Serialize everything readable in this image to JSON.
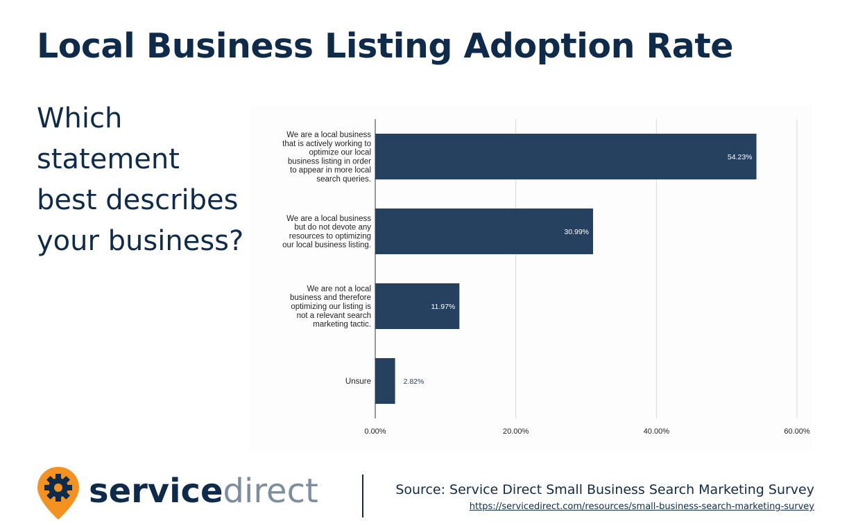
{
  "page": {
    "title": "Local Business Listing Adoption Rate",
    "question": "Which statement best describes your business?"
  },
  "colors": {
    "bar": "#26415f",
    "title": "#0f2b4b",
    "accent_orange": "#f39220",
    "logo_direct": "#7b8da1",
    "grid": "#d9d9d9"
  },
  "chart_data": {
    "type": "bar",
    "orientation": "horizontal",
    "categories": [
      "We are a local business that is actively working to optimize our local business listing in order to appear in more local search queries.",
      "We are a local business but do not devote any resources to optimizing our local business listing.",
      "We are not a local business and therefore optimizing our listing is not a relevant search marketing tactic.",
      "Unsure"
    ],
    "category_lines": [
      [
        "We are a local business",
        "that is actively working to",
        "optimize our local",
        "business listing in order",
        "to appear in more local",
        "search queries."
      ],
      [
        "We are a local business",
        "but do not devote any",
        "resources to optimizing",
        "our local business listing."
      ],
      [
        "We are not a local",
        "business and therefore",
        "optimizing our listing is",
        "not a relevant search",
        "marketing tactic."
      ],
      [
        "Unsure"
      ]
    ],
    "values": [
      54.23,
      30.99,
      11.97,
      2.82
    ],
    "data_labels": [
      "54.23%",
      "30.99%",
      "11.97%",
      "2.82%"
    ],
    "xlim": [
      0,
      60
    ],
    "x_ticks": [
      0,
      20,
      40,
      60
    ],
    "x_tick_labels": [
      "0.00%",
      "20.00%",
      "40.00%",
      "60.00%"
    ],
    "grid": true
  },
  "logo": {
    "name_bold": "service",
    "name_light": "direct",
    "icon": "gear-pin-icon"
  },
  "source": {
    "text": "Source: Service Direct Small Business Search Marketing Survey",
    "url": "https://servicedirect.com/resources/small-business-search-marketing-survey"
  }
}
